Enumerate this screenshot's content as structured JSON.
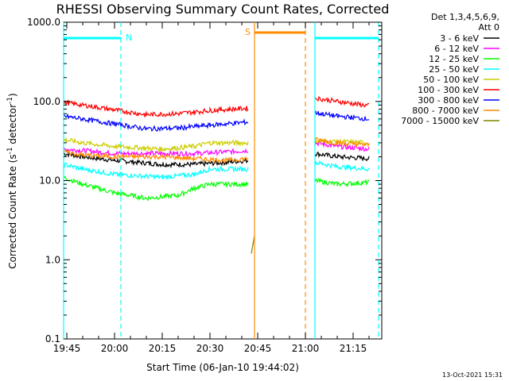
{
  "chart_data": {
    "type": "line",
    "title": "RHESSI Observing Summary Count Rates, Corrected",
    "xlabel": "Start Time (06-Jan-10 19:44:02)",
    "ylabel_main": "Corrected Count Rate (s",
    "ylabel_sup1": "-1",
    "ylabel_mid": " detector",
    "ylabel_sup2": "-1",
    "ylabel_end": ")",
    "y_scale": "log",
    "ylim": [
      0.1,
      1000
    ],
    "xlim": [
      "19:44",
      "21:24"
    ],
    "y_ticks": [
      "0.1",
      "1.0",
      "10.0",
      "100.0",
      "1000.0"
    ],
    "x_ticks": [
      "19:45",
      "20:00",
      "20:15",
      "20:30",
      "20:45",
      "21:00",
      "21:15"
    ],
    "legend_header": [
      "Det 1,3,4,5,6,9,",
      "Att 0"
    ],
    "legend_placement": "right",
    "footer_date": "13-Oct-2021 15:31",
    "series": [
      {
        "name": "3 - 6 keV",
        "color": "#000000",
        "points": [
          [
            "19:44",
            22
          ],
          [
            "19:50",
            20
          ],
          [
            "20:00",
            18
          ],
          [
            "20:15",
            16
          ],
          [
            "20:25",
            16
          ],
          [
            "20:35",
            17
          ],
          [
            "20:42",
            18
          ],
          [
            "21:03",
            22
          ],
          [
            "21:10",
            20
          ],
          [
            "21:20",
            19
          ]
        ]
      },
      {
        "name": "6 - 12 keV",
        "color": "#ff00ff",
        "points": [
          [
            "19:44",
            25
          ],
          [
            "19:50",
            24
          ],
          [
            "20:00",
            22
          ],
          [
            "20:15",
            22
          ],
          [
            "20:25",
            22
          ],
          [
            "20:35",
            23
          ],
          [
            "20:42",
            24
          ],
          [
            "21:03",
            30
          ],
          [
            "21:10",
            27
          ],
          [
            "21:20",
            25
          ]
        ]
      },
      {
        "name": "12 - 25 keV",
        "color": "#00ff00",
        "points": [
          [
            "19:44",
            11
          ],
          [
            "19:50",
            9
          ],
          [
            "20:00",
            7
          ],
          [
            "20:10",
            6
          ],
          [
            "20:20",
            6.5
          ],
          [
            "20:25",
            8
          ],
          [
            "20:30",
            9
          ],
          [
            "20:42",
            9
          ],
          [
            "21:03",
            10
          ],
          [
            "21:10",
            9
          ],
          [
            "21:20",
            9.5
          ]
        ]
      },
      {
        "name": "25 - 50 keV",
        "color": "#00ffff",
        "points": [
          [
            "19:44",
            16
          ],
          [
            "19:50",
            14
          ],
          [
            "20:00",
            12
          ],
          [
            "20:15",
            11
          ],
          [
            "20:25",
            12
          ],
          [
            "20:30",
            14
          ],
          [
            "20:42",
            14
          ],
          [
            "21:03",
            17
          ],
          [
            "21:10",
            15
          ],
          [
            "21:20",
            14
          ]
        ]
      },
      {
        "name": "50 - 100 keV",
        "color": "#cccc00",
        "points": [
          [
            "19:44",
            33
          ],
          [
            "19:50",
            30
          ],
          [
            "20:00",
            27
          ],
          [
            "20:15",
            25
          ],
          [
            "20:25",
            27
          ],
          [
            "20:30",
            30
          ],
          [
            "20:42",
            30
          ],
          [
            "21:03",
            32
          ],
          [
            "21:10",
            31
          ],
          [
            "21:20",
            30
          ]
        ]
      },
      {
        "name": "100 - 300 keV",
        "color": "#ff0000",
        "points": [
          [
            "19:44",
            97
          ],
          [
            "19:50",
            90
          ],
          [
            "20:00",
            78
          ],
          [
            "20:10",
            68
          ],
          [
            "20:20",
            70
          ],
          [
            "20:30",
            77
          ],
          [
            "20:42",
            82
          ],
          [
            "21:03",
            110
          ],
          [
            "21:10",
            100
          ],
          [
            "21:20",
            88
          ]
        ]
      },
      {
        "name": "300 - 800 keV",
        "color": "#0000ff",
        "points": [
          [
            "19:44",
            65
          ],
          [
            "19:50",
            60
          ],
          [
            "20:00",
            52
          ],
          [
            "20:10",
            45
          ],
          [
            "20:20",
            46
          ],
          [
            "20:30",
            50
          ],
          [
            "20:42",
            55
          ],
          [
            "21:03",
            72
          ],
          [
            "21:10",
            65
          ],
          [
            "21:20",
            60
          ]
        ]
      },
      {
        "name": "800 - 7000 keV",
        "color": "#ff8c00",
        "points": [
          [
            "19:44",
            23
          ],
          [
            "19:50",
            21
          ],
          [
            "20:00",
            20
          ],
          [
            "20:15",
            20
          ],
          [
            "20:25",
            19
          ],
          [
            "20:35",
            18
          ],
          [
            "20:42",
            19
          ],
          [
            "21:03",
            33
          ],
          [
            "21:10",
            30
          ],
          [
            "21:20",
            28
          ]
        ]
      },
      {
        "name": "7000 - 15000 keV",
        "color": "#808000",
        "points": [
          [
            "20:43",
            1.2
          ],
          [
            "20:44",
            2
          ]
        ]
      }
    ],
    "annotations": {
      "night_label": "N",
      "saa_label": "S",
      "night_color": "#00ffff",
      "saa_color": "#ff8c00",
      "night_intervals": [
        [
          "19:44",
          "20:02"
        ],
        [
          "21:03",
          "21:23"
        ]
      ],
      "saa_interval": [
        "20:44",
        "21:00"
      ]
    }
  }
}
